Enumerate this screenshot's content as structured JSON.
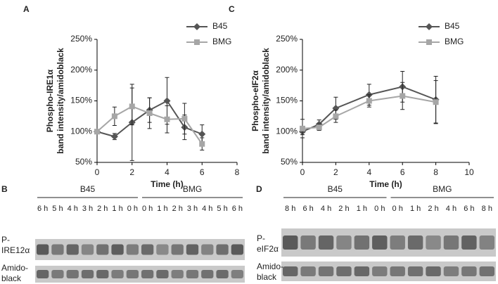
{
  "chart_data": [
    {
      "type": "line",
      "panel": "A",
      "ylabel": [
        "Phospho-IRE1α",
        "band intensity/amidoblack"
      ],
      "xlabel": "Time (h)",
      "x": [
        0,
        1,
        2,
        3,
        4,
        5,
        6
      ],
      "xlim": [
        0,
        8
      ],
      "xticks": [
        0,
        2,
        4,
        6,
        8
      ],
      "ylim": [
        50,
        250
      ],
      "yticks": [
        {
          "value": 50,
          "label": "50%"
        },
        {
          "value": 100,
          "label": "100%"
        },
        {
          "value": 150,
          "label": "150%"
        },
        {
          "value": 200,
          "label": "200%"
        },
        {
          "value": 250,
          "label": "250%"
        }
      ],
      "legend": "upper right",
      "grid": false,
      "series": [
        {
          "name": "B45",
          "color": "#555555",
          "marker": "diamond",
          "values": [
            100,
            92,
            115,
            135,
            150,
            107,
            96
          ],
          "errors": [
            0,
            5,
            62,
            20,
            38,
            20,
            15
          ]
        },
        {
          "name": "BMG",
          "color": "#a6a6a6",
          "marker": "square",
          "values": [
            100,
            125,
            141,
            130,
            120,
            121,
            80
          ],
          "errors": [
            0,
            15,
            30,
            25,
            22,
            25,
            10
          ]
        }
      ]
    },
    {
      "type": "line",
      "panel": "C",
      "ylabel": [
        "Phospho-eIF2α",
        "band intensity/amidoblack"
      ],
      "xlabel": "Time (h)",
      "x": [
        0,
        1,
        2,
        4,
        6,
        8
      ],
      "xlim": [
        0,
        10
      ],
      "xticks": [
        0,
        2,
        4,
        6,
        8,
        10
      ],
      "ylim": [
        50,
        250
      ],
      "yticks": [
        {
          "value": 50,
          "label": "50%"
        },
        {
          "value": 100,
          "label": "100%"
        },
        {
          "value": 150,
          "label": "150%"
        },
        {
          "value": 200,
          "label": "200%"
        },
        {
          "value": 250,
          "label": "250%"
        }
      ],
      "legend": "upper right",
      "grid": false,
      "series": [
        {
          "name": "B45",
          "color": "#555555",
          "marker": "diamond",
          "values": [
            100,
            112,
            138,
            160,
            173,
            152
          ],
          "errors": [
            5,
            7,
            18,
            17,
            25,
            38
          ]
        },
        {
          "name": "BMG",
          "color": "#a6a6a6",
          "marker": "square",
          "values": [
            105,
            107,
            125,
            150,
            158,
            148
          ],
          "errors": [
            15,
            5,
            10,
            10,
            22,
            35
          ]
        }
      ]
    }
  ],
  "blots": [
    {
      "panel": "B",
      "groups": [
        "B45",
        "BMG"
      ],
      "lanes": [
        "6 h",
        "5 h",
        "4 h",
        "3 h",
        "2 h",
        "1 h",
        "0 h",
        "0 h",
        "1 h",
        "2 h",
        "3 h",
        "4 h",
        "5 h",
        "6 h"
      ],
      "rows": [
        [
          "P-",
          "IRE12α"
        ],
        [
          "Amido-",
          "black"
        ]
      ]
    },
    {
      "panel": "D",
      "groups": [
        "B45",
        "BMG"
      ],
      "lanes": [
        "8 h",
        "6 h",
        "4 h",
        "2 h",
        "1 h",
        "0 h",
        "0 h",
        "1 h",
        "2 h",
        "4 h",
        "6 h",
        "8 h"
      ],
      "rows": [
        [
          "P-",
          "eIF2α"
        ],
        [
          "Amido-",
          "black"
        ]
      ]
    }
  ]
}
